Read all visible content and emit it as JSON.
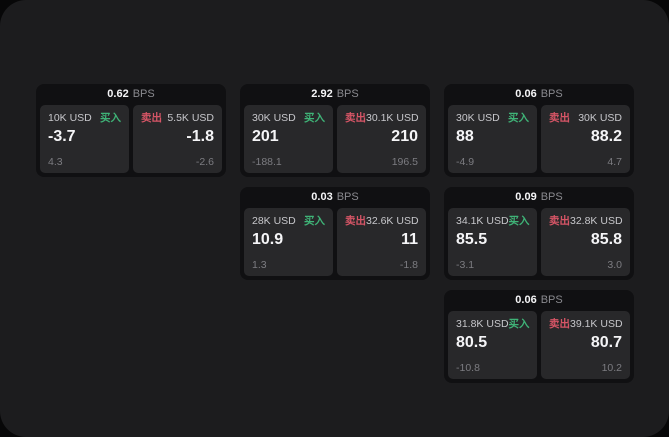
{
  "labels": {
    "bps_unit": "BPS",
    "buy": "买入",
    "sell": "卖出"
  },
  "colors": {
    "buy_green": "#3fb377",
    "sell_red": "#d65566",
    "surface": "#1c1c1e",
    "card_background": "#101012",
    "tile_background": "#28282a"
  },
  "cards": [
    {
      "bps": "0.62",
      "buy": {
        "amount": "10K USD",
        "value": "-3.7",
        "sub": "4.3"
      },
      "sell": {
        "amount": "5.5K USD",
        "value": "-1.8",
        "sub": "-2.6"
      }
    },
    {
      "bps": "2.92",
      "buy": {
        "amount": "30K USD",
        "value": "201",
        "sub": "-188.1"
      },
      "sell": {
        "amount": "30.1K USD",
        "value": "210",
        "sub": "196.5"
      }
    },
    {
      "bps": "0.06",
      "buy": {
        "amount": "30K USD",
        "value": "88",
        "sub": "-4.9"
      },
      "sell": {
        "amount": "30K USD",
        "value": "88.2",
        "sub": "4.7"
      }
    },
    {
      "bps": "0.03",
      "buy": {
        "amount": "28K USD",
        "value": "10.9",
        "sub": "1.3"
      },
      "sell": {
        "amount": "32.6K USD",
        "value": "11",
        "sub": "-1.8"
      }
    },
    {
      "bps": "0.09",
      "buy": {
        "amount": "34.1K USD",
        "value": "85.5",
        "sub": "-3.1"
      },
      "sell": {
        "amount": "32.8K USD",
        "value": "85.8",
        "sub": "3.0"
      }
    },
    {
      "bps": "0.06",
      "buy": {
        "amount": "31.8K USD",
        "value": "80.5",
        "sub": "-10.8"
      },
      "sell": {
        "amount": "39.1K USD",
        "value": "80.7",
        "sub": "10.2"
      }
    }
  ]
}
